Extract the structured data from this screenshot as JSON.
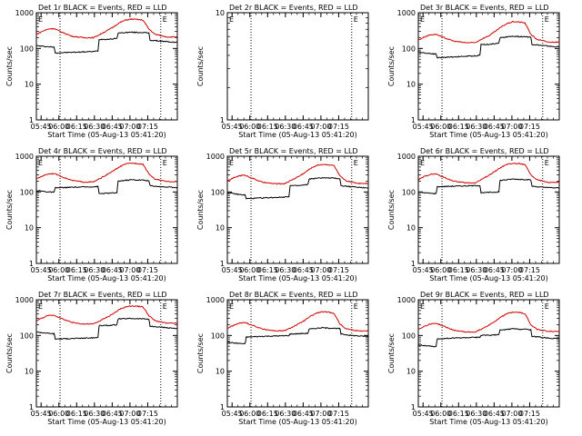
{
  "figure": {
    "xlabel": "Start Time (05-Aug-13 05:41:20)",
    "ylabel": "Counts/sec"
  },
  "chart_data": [
    {
      "type": "line",
      "title": "Det 1r BLACK = Events, RED = LLD",
      "x_tick_labels": [
        "05:45",
        "06:00",
        "06:15",
        "06:30",
        "06:45",
        "07:00",
        "07:15"
      ],
      "y_tick_labels": [
        "1",
        "10",
        "100",
        "1000"
      ],
      "ylim": [
        1,
        1000
      ],
      "vlines_minutes": [
        20,
        105
      ],
      "markers": [
        "E",
        "E"
      ],
      "series": [
        {
          "name": "Events",
          "color": "#000000",
          "t": [
            0,
            5,
            10,
            15,
            16,
            30,
            48,
            52,
            53,
            60,
            68,
            69,
            80,
            85,
            90,
            95,
            96,
            105,
            115,
            119
          ],
          "v": [
            120,
            115,
            112,
            108,
            75,
            78,
            82,
            85,
            180,
            180,
            190,
            270,
            285,
            280,
            280,
            270,
            170,
            160,
            150,
            148
          ]
        },
        {
          "name": "LLD",
          "color": "#d00000",
          "t": [
            0,
            5,
            10,
            15,
            20,
            30,
            40,
            48,
            53,
            60,
            65,
            70,
            75,
            80,
            85,
            90,
            95,
            100,
            110,
            119
          ],
          "v": [
            250,
            300,
            350,
            360,
            300,
            220,
            200,
            200,
            240,
            320,
            400,
            520,
            620,
            660,
            650,
            620,
            350,
            250,
            210,
            210
          ]
        }
      ]
    },
    {
      "type": "line",
      "title": "Det 2r BLACK = Events, RED = LLD",
      "x_tick_labels": [
        "05:45",
        "06:00",
        "06:15",
        "06:30",
        "06:45",
        "07:00",
        "07:15"
      ],
      "y_tick_labels": [
        "1",
        "10"
      ],
      "ylim": [
        1,
        10
      ],
      "vlines_minutes": [
        20,
        105
      ],
      "markers": [
        "E",
        "E"
      ],
      "series": []
    },
    {
      "type": "line",
      "title": "Det 3r BLACK = Events, RED = LLD",
      "x_tick_labels": [
        "05:45",
        "06:00",
        "06:15",
        "06:30",
        "06:45",
        "07:00",
        "07:15"
      ],
      "y_tick_labels": [
        "1",
        "10",
        "100",
        "1000"
      ],
      "ylim": [
        1,
        1000
      ],
      "vlines_minutes": [
        20,
        105
      ],
      "markers": [
        "E",
        "E"
      ],
      "series": [
        {
          "name": "Events",
          "color": "#000000",
          "t": [
            0,
            5,
            10,
            15,
            16,
            30,
            48,
            52,
            53,
            60,
            68,
            69,
            80,
            85,
            90,
            95,
            96,
            105,
            115,
            119
          ],
          "v": [
            80,
            75,
            72,
            70,
            55,
            58,
            62,
            65,
            130,
            130,
            140,
            200,
            220,
            215,
            215,
            205,
            130,
            120,
            112,
            110
          ]
        },
        {
          "name": "LLD",
          "color": "#d00000",
          "t": [
            0,
            5,
            10,
            15,
            20,
            30,
            40,
            48,
            53,
            60,
            65,
            70,
            75,
            80,
            85,
            90,
            95,
            100,
            110,
            119
          ],
          "v": [
            170,
            210,
            240,
            250,
            210,
            160,
            145,
            145,
            180,
            230,
            300,
            400,
            500,
            560,
            550,
            520,
            250,
            180,
            150,
            150
          ]
        }
      ]
    },
    {
      "type": "line",
      "title": "Det 4r BLACK = Events, RED = LLD",
      "x_tick_labels": [
        "05:45",
        "06:00",
        "06:15",
        "06:30",
        "06:45",
        "07:00",
        "07:15"
      ],
      "y_tick_labels": [
        "1",
        "10",
        "100",
        "1000"
      ],
      "ylim": [
        1,
        1000
      ],
      "vlines_minutes": [
        20,
        105
      ],
      "markers": [
        "E",
        "E"
      ],
      "series": [
        {
          "name": "Events",
          "color": "#000000",
          "t": [
            0,
            5,
            10,
            15,
            16,
            30,
            48,
            52,
            53,
            60,
            68,
            69,
            80,
            85,
            90,
            95,
            96,
            105,
            115,
            119
          ],
          "v": [
            110,
            105,
            100,
            98,
            130,
            135,
            140,
            142,
            90,
            92,
            95,
            200,
            220,
            215,
            215,
            205,
            150,
            140,
            135,
            135
          ]
        },
        {
          "name": "LLD",
          "color": "#d00000",
          "t": [
            0,
            5,
            10,
            15,
            20,
            30,
            40,
            48,
            53,
            60,
            65,
            70,
            75,
            80,
            85,
            90,
            95,
            100,
            110,
            119
          ],
          "v": [
            230,
            280,
            320,
            330,
            280,
            210,
            190,
            190,
            230,
            310,
            390,
            500,
            600,
            640,
            630,
            600,
            320,
            230,
            195,
            195
          ]
        }
      ]
    },
    {
      "type": "line",
      "title": "Det 5r BLACK = Events, RED = LLD",
      "x_tick_labels": [
        "05:45",
        "06:00",
        "06:15",
        "06:30",
        "06:45",
        "07:00",
        "07:15"
      ],
      "y_tick_labels": [
        "1",
        "10",
        "100",
        "1000"
      ],
      "ylim": [
        1,
        1000
      ],
      "vlines_minutes": [
        20,
        105
      ],
      "markers": [
        "E",
        "E"
      ],
      "series": [
        {
          "name": "Events",
          "color": "#000000",
          "t": [
            0,
            5,
            10,
            15,
            16,
            30,
            48,
            52,
            53,
            60,
            68,
            69,
            80,
            85,
            90,
            95,
            96,
            105,
            115,
            119
          ],
          "v": [
            95,
            90,
            85,
            82,
            65,
            68,
            72,
            75,
            150,
            150,
            160,
            230,
            250,
            245,
            245,
            235,
            150,
            140,
            132,
            130
          ]
        },
        {
          "name": "LLD",
          "color": "#d00000",
          "t": [
            0,
            5,
            10,
            15,
            20,
            30,
            40,
            48,
            53,
            60,
            65,
            70,
            75,
            80,
            85,
            90,
            95,
            100,
            110,
            119
          ],
          "v": [
            200,
            245,
            285,
            295,
            250,
            185,
            170,
            170,
            205,
            270,
            340,
            450,
            550,
            590,
            580,
            550,
            280,
            205,
            175,
            175
          ]
        }
      ]
    },
    {
      "type": "line",
      "title": "Det 6r BLACK = Events, RED = LLD",
      "x_tick_labels": [
        "05:45",
        "06:00",
        "06:15",
        "06:30",
        "06:45",
        "07:00",
        "07:15"
      ],
      "y_tick_labels": [
        "1",
        "10",
        "100",
        "1000"
      ],
      "ylim": [
        1,
        1000
      ],
      "vlines_minutes": [
        20,
        105
      ],
      "markers": [
        "E",
        "E"
      ],
      "series": [
        {
          "name": "Events",
          "color": "#000000",
          "t": [
            0,
            5,
            10,
            15,
            16,
            30,
            48,
            52,
            53,
            60,
            68,
            69,
            80,
            85,
            90,
            95,
            96,
            105,
            115,
            119
          ],
          "v": [
            100,
            95,
            92,
            90,
            140,
            145,
            150,
            152,
            95,
            97,
            100,
            210,
            230,
            225,
            225,
            215,
            145,
            135,
            130,
            130
          ]
        },
        {
          "name": "LLD",
          "color": "#d00000",
          "t": [
            0,
            5,
            10,
            15,
            20,
            30,
            40,
            48,
            53,
            60,
            65,
            70,
            75,
            80,
            85,
            90,
            95,
            100,
            110,
            119
          ],
          "v": [
            220,
            270,
            310,
            320,
            270,
            200,
            180,
            180,
            220,
            300,
            380,
            490,
            590,
            630,
            620,
            590,
            300,
            220,
            185,
            185
          ]
        }
      ]
    },
    {
      "type": "line",
      "title": "Det 7r BLACK = Events, RED = LLD",
      "x_tick_labels": [
        "05:45",
        "06:00",
        "06:15",
        "06:30",
        "06:45",
        "07:00",
        "07:15"
      ],
      "y_tick_labels": [
        "1",
        "10",
        "100",
        "1000"
      ],
      "ylim": [
        1,
        1000
      ],
      "vlines_minutes": [
        20,
        105
      ],
      "markers": [
        "E",
        "E"
      ],
      "series": [
        {
          "name": "Events",
          "color": "#000000",
          "t": [
            0,
            5,
            10,
            15,
            16,
            30,
            48,
            52,
            53,
            60,
            68,
            69,
            80,
            85,
            90,
            95,
            96,
            105,
            115,
            119
          ],
          "v": [
            125,
            120,
            115,
            112,
            80,
            82,
            86,
            88,
            190,
            190,
            200,
            290,
            300,
            295,
            295,
            285,
            180,
            170,
            160,
            158
          ]
        },
        {
          "name": "LLD",
          "color": "#d00000",
          "t": [
            0,
            5,
            10,
            15,
            20,
            30,
            40,
            48,
            53,
            60,
            65,
            70,
            75,
            80,
            85,
            90,
            95,
            100,
            110,
            119
          ],
          "v": [
            260,
            310,
            360,
            370,
            310,
            230,
            210,
            210,
            250,
            330,
            410,
            530,
            630,
            670,
            660,
            630,
            360,
            260,
            220,
            220
          ]
        }
      ]
    },
    {
      "type": "line",
      "title": "Det 8r BLACK = Events, RED = LLD",
      "x_tick_labels": [
        "05:45",
        "06:00",
        "06:15",
        "06:30",
        "06:45",
        "07:00",
        "07:15"
      ],
      "y_tick_labels": [
        "1",
        "10",
        "100",
        "1000"
      ],
      "ylim": [
        1,
        1000
      ],
      "vlines_minutes": [
        20,
        105
      ],
      "markers": [
        "E",
        "E"
      ],
      "series": [
        {
          "name": "Events",
          "color": "#000000",
          "t": [
            0,
            5,
            10,
            15,
            16,
            30,
            48,
            52,
            53,
            60,
            68,
            69,
            80,
            85,
            90,
            95,
            96,
            105,
            115,
            119
          ],
          "v": [
            65,
            62,
            60,
            58,
            90,
            95,
            98,
            100,
            110,
            112,
            115,
            150,
            165,
            160,
            160,
            155,
            110,
            100,
            95,
            95
          ]
        },
        {
          "name": "LLD",
          "color": "#d00000",
          "t": [
            0,
            5,
            10,
            15,
            20,
            30,
            40,
            48,
            53,
            60,
            65,
            70,
            75,
            80,
            85,
            90,
            95,
            100,
            110,
            119
          ],
          "v": [
            160,
            190,
            220,
            230,
            200,
            150,
            135,
            135,
            160,
            210,
            260,
            340,
            420,
            460,
            450,
            420,
            210,
            155,
            135,
            135
          ]
        }
      ]
    },
    {
      "type": "line",
      "title": "Det 9r BLACK = Events, RED = LLD",
      "x_tick_labels": [
        "05:45",
        "06:00",
        "06:15",
        "06:30",
        "06:45",
        "07:00",
        "07:15"
      ],
      "y_tick_labels": [
        "1",
        "10",
        "100",
        "1000"
      ],
      "ylim": [
        1,
        1000
      ],
      "vlines_minutes": [
        20,
        105
      ],
      "markers": [
        "E",
        "E"
      ],
      "series": [
        {
          "name": "Events",
          "color": "#000000",
          "t": [
            0,
            5,
            10,
            15,
            16,
            30,
            48,
            52,
            53,
            60,
            68,
            69,
            80,
            85,
            90,
            95,
            96,
            105,
            115,
            119
          ],
          "v": [
            55,
            52,
            50,
            48,
            80,
            85,
            88,
            90,
            100,
            102,
            105,
            140,
            155,
            150,
            150,
            145,
            95,
            88,
            82,
            82
          ]
        },
        {
          "name": "LLD",
          "color": "#d00000",
          "t": [
            0,
            5,
            10,
            15,
            20,
            30,
            40,
            48,
            53,
            60,
            65,
            70,
            75,
            80,
            85,
            90,
            95,
            100,
            110,
            119
          ],
          "v": [
            150,
            180,
            210,
            220,
            190,
            140,
            125,
            125,
            150,
            200,
            250,
            330,
            410,
            450,
            440,
            410,
            200,
            150,
            130,
            130
          ]
        }
      ]
    }
  ]
}
